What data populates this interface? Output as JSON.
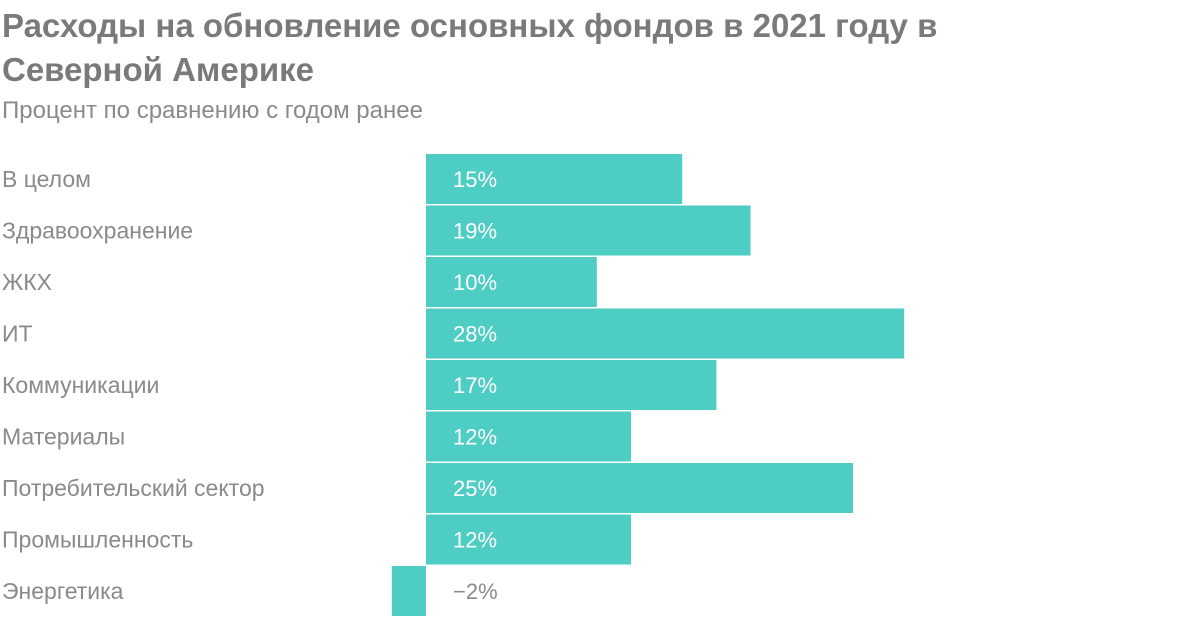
{
  "title": "Расходы на обновление основных фондов в 2021 году в Северной Америке",
  "subtitle": "Процент по сравнению с годом ранее",
  "colors": {
    "bar": "#4ecdc4",
    "inside_label": "#ffffff",
    "outside_label": "#8a8a8a",
    "text": "#8a8a8a"
  },
  "chart_data": {
    "type": "bar",
    "orientation": "horizontal",
    "categories": [
      "В целом",
      "Здравоохранение",
      "ЖКХ",
      "ИТ",
      "Коммуникации",
      "Материалы",
      "Потребительский сектор",
      "Промышленность",
      "Энергетика"
    ],
    "values": [
      15,
      19,
      10,
      28,
      17,
      12,
      25,
      12,
      -2
    ],
    "value_labels": [
      "15%",
      "19%",
      "10%",
      "28%",
      "17%",
      "12%",
      "25%",
      "12%",
      "−2%"
    ],
    "unit": "%",
    "xlim": [
      -2,
      28
    ],
    "grid": false,
    "legend": "none"
  }
}
